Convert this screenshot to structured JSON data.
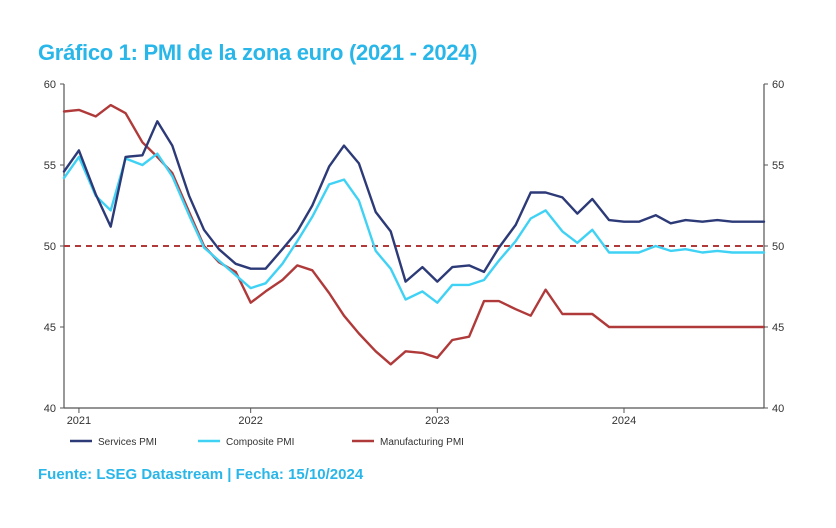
{
  "header": {
    "title": "Gráfico 1: PMI de la zona euro (2021 - 2024)"
  },
  "footer": {
    "source": "Fuente: LSEG Datastream | Fecha: 15/10/2024"
  },
  "colors": {
    "title": "#29b6e8",
    "services": "#2d3a78",
    "composite": "#3fd2f5",
    "manufacturing": "#b03a3a",
    "reference_line": "#b03a3a"
  },
  "chart_data": {
    "type": "line",
    "title": "Gráfico 1: PMI de la zona euro (2021 - 2024)",
    "xlabel": "",
    "ylabel": "",
    "xlim": [
      2021.0,
      2024.75
    ],
    "ylim": [
      40,
      60
    ],
    "y_ticks": [
      "60",
      "55",
      "50",
      "45",
      "40"
    ],
    "x_ticks": [
      {
        "label": "2021",
        "x": 2021.08
      },
      {
        "label": "2022",
        "x": 2022.0
      },
      {
        "label": "2023",
        "x": 2023.0
      },
      {
        "label": "2024",
        "x": 2024.0
      }
    ],
    "reference_line": 50,
    "grid": false,
    "legend_position": "bottom",
    "series": [
      {
        "name": "Services PMI",
        "x": [
          2021.0,
          2021.08,
          2021.17,
          2021.25,
          2021.33,
          2021.42,
          2021.5,
          2021.58,
          2021.67,
          2021.75,
          2021.83,
          2021.92,
          2022.0,
          2022.08,
          2022.17,
          2022.25,
          2022.33,
          2022.42,
          2022.5,
          2022.58,
          2022.67,
          2022.75,
          2022.83,
          2022.92,
          2023.0,
          2023.08,
          2023.17,
          2023.25,
          2023.33,
          2023.42,
          2023.5,
          2023.58,
          2023.67,
          2023.75,
          2023.83,
          2023.92,
          2024.0,
          2024.08,
          2024.17,
          2024.25,
          2024.33,
          2024.42,
          2024.5,
          2024.58,
          2024.67,
          2024.75
        ],
        "values": [
          54.6,
          55.9,
          53.2,
          51.2,
          55.5,
          55.6,
          57.7,
          56.2,
          53.1,
          51.0,
          49.8,
          48.9,
          48.6,
          48.6,
          49.8,
          50.9,
          52.5,
          54.9,
          56.2,
          55.1,
          52.1,
          50.9,
          47.8,
          48.7,
          47.8,
          48.7,
          48.8,
          48.4,
          49.9,
          51.3,
          53.3,
          53.3,
          53.0,
          52.0,
          52.9,
          51.6,
          51.5,
          51.5,
          51.9,
          51.4,
          51.6,
          51.5,
          51.6,
          51.5,
          51.5,
          51.5
        ],
        "color": "#2d3a78"
      },
      {
        "name": "Composite PMI",
        "x": [
          2021.0,
          2021.08,
          2021.17,
          2021.25,
          2021.33,
          2021.42,
          2021.5,
          2021.58,
          2021.67,
          2021.75,
          2021.83,
          2021.92,
          2022.0,
          2022.08,
          2022.17,
          2022.25,
          2022.33,
          2022.42,
          2022.5,
          2022.58,
          2022.67,
          2022.75,
          2022.83,
          2022.92,
          2023.0,
          2023.08,
          2023.17,
          2023.25,
          2023.33,
          2023.42,
          2023.5,
          2023.58,
          2023.67,
          2023.75,
          2023.83,
          2023.92,
          2024.0,
          2024.08,
          2024.17,
          2024.25,
          2024.33,
          2024.42,
          2024.5,
          2024.58,
          2024.67,
          2024.75
        ],
        "values": [
          54.2,
          55.5,
          53.1,
          52.2,
          55.4,
          55.0,
          55.7,
          54.3,
          51.9,
          49.9,
          49.1,
          48.2,
          47.4,
          47.7,
          48.9,
          50.3,
          51.8,
          53.8,
          54.1,
          52.8,
          49.7,
          48.6,
          46.7,
          47.2,
          46.5,
          47.6,
          47.6,
          47.9,
          49.1,
          50.3,
          51.7,
          52.2,
          50.9,
          50.2,
          51.0,
          49.6,
          49.6,
          49.6,
          50.0,
          49.7,
          49.8,
          49.6,
          49.7,
          49.6,
          49.6,
          49.6
        ],
        "color": "#3fd2f5"
      },
      {
        "name": "Manufacturing PMI",
        "x": [
          2021.0,
          2021.08,
          2021.17,
          2021.25,
          2021.33,
          2021.42,
          2021.5,
          2021.58,
          2021.67,
          2021.75,
          2021.83,
          2021.92,
          2022.0,
          2022.08,
          2022.17,
          2022.25,
          2022.33,
          2022.42,
          2022.5,
          2022.58,
          2022.67,
          2022.75,
          2022.83,
          2022.92,
          2023.0,
          2023.08,
          2023.17,
          2023.25,
          2023.33,
          2023.42,
          2023.5,
          2023.58,
          2023.67,
          2023.75,
          2023.83,
          2023.92,
          2024.0,
          2024.08,
          2024.17,
          2024.25,
          2024.33,
          2024.42,
          2024.5,
          2024.58,
          2024.67,
          2024.75
        ],
        "values": [
          58.3,
          58.4,
          58.0,
          58.7,
          58.2,
          56.4,
          55.5,
          54.5,
          52.1,
          50.0,
          49.0,
          48.4,
          46.5,
          47.2,
          47.9,
          48.8,
          48.5,
          47.1,
          45.7,
          44.6,
          43.5,
          42.7,
          43.5,
          43.4,
          43.1,
          44.2,
          44.4,
          46.6,
          46.6,
          46.1,
          45.7,
          47.3,
          45.8,
          45.8,
          45.8,
          45.0,
          45.0,
          45.0,
          45.0,
          45.0,
          45.0,
          45.0,
          45.0,
          45.0,
          45.0,
          45.0
        ],
        "color": "#b03a3a"
      }
    ]
  }
}
